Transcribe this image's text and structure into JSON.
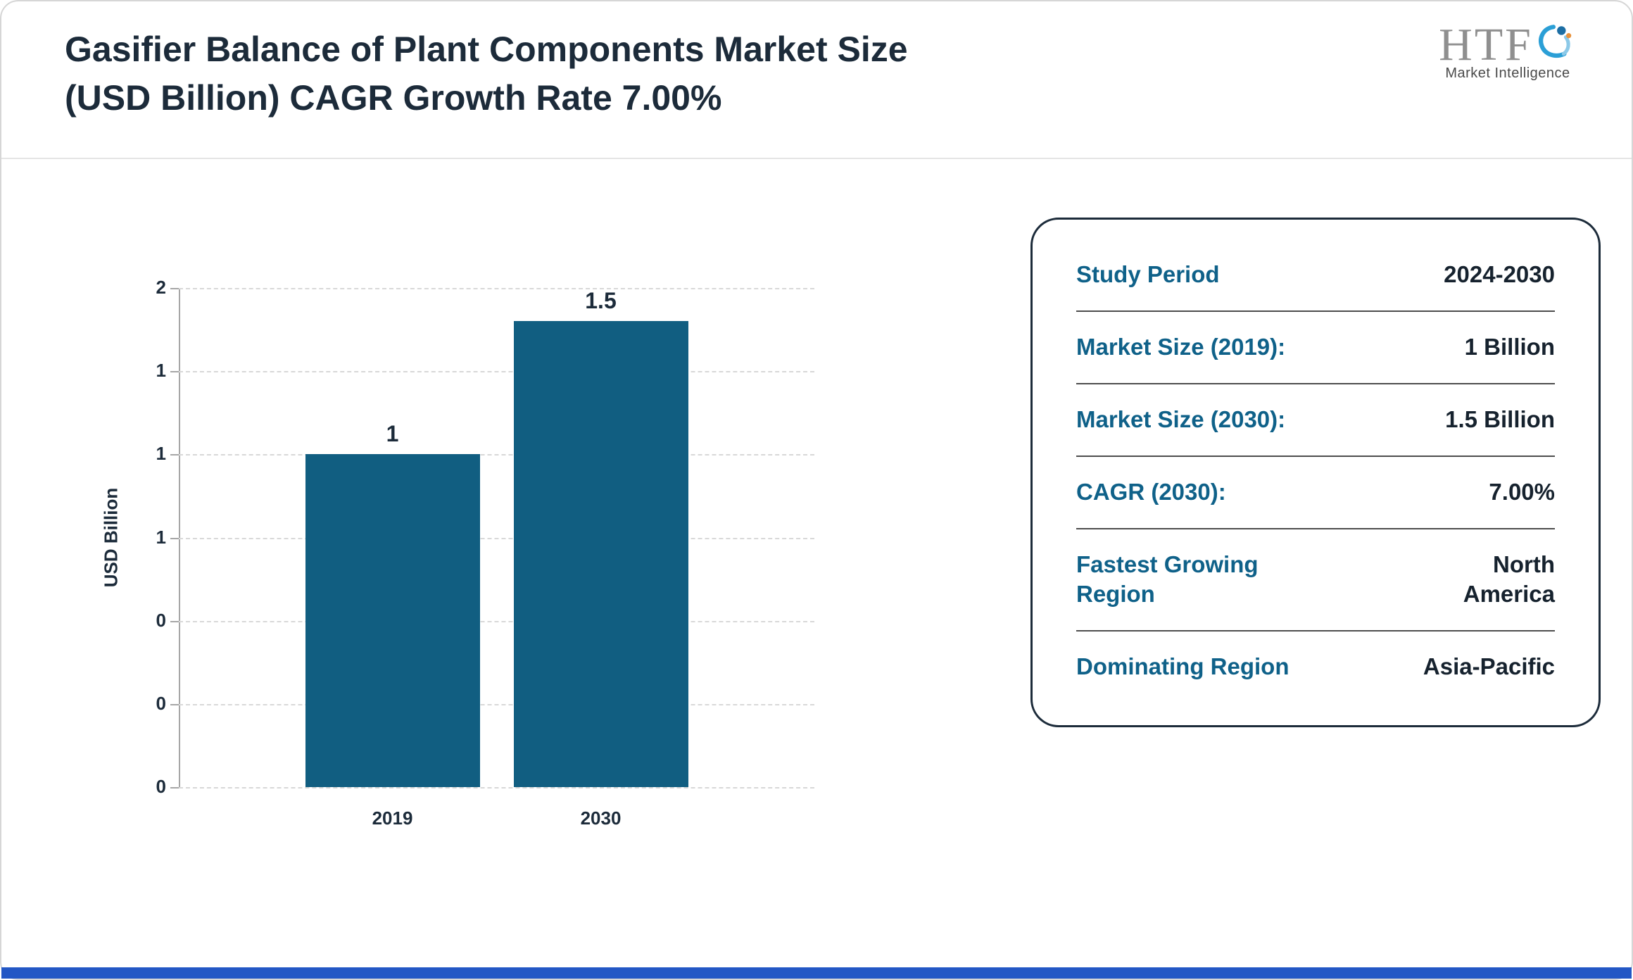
{
  "header": {
    "title": "Gasifier Balance of Plant Components Market Size (USD Billion) CAGR Growth Rate 7.00%",
    "logo": {
      "brand": "HTF",
      "tagline": "Market Intelligence"
    }
  },
  "chart_data": {
    "type": "bar",
    "categories": [
      "2019",
      "2030"
    ],
    "values": [
      1,
      1.5
    ],
    "value_labels": [
      "1",
      "1.5"
    ],
    "ylabel": "USD Billion",
    "ylim": [
      0,
      1.5
    ],
    "ytick_labels_top_down": [
      "2",
      "1",
      "1",
      "1",
      "0",
      "0",
      "0"
    ],
    "grid": "horizontal-dashed",
    "legend": "none",
    "bar_color": "#115e81"
  },
  "info_panel": {
    "rows": [
      {
        "label": "Study Period",
        "value": "2024-2030"
      },
      {
        "label": "Market Size (2019):",
        "value": "1 Billion"
      },
      {
        "label": "Market Size (2030):",
        "value": "1.5 Billion"
      },
      {
        "label": "CAGR (2030):",
        "value": "7.00%"
      },
      {
        "label": "Fastest Growing Region",
        "value": "North America"
      },
      {
        "label": "Dominating Region",
        "value": "Asia-Pacific"
      }
    ]
  },
  "colors": {
    "accent_teal": "#115e81",
    "label_teal": "#0f6189",
    "title_navy": "#1c2b3a",
    "footer_blue": "#2357c5",
    "gridline_gray": "#d8d8d8"
  }
}
